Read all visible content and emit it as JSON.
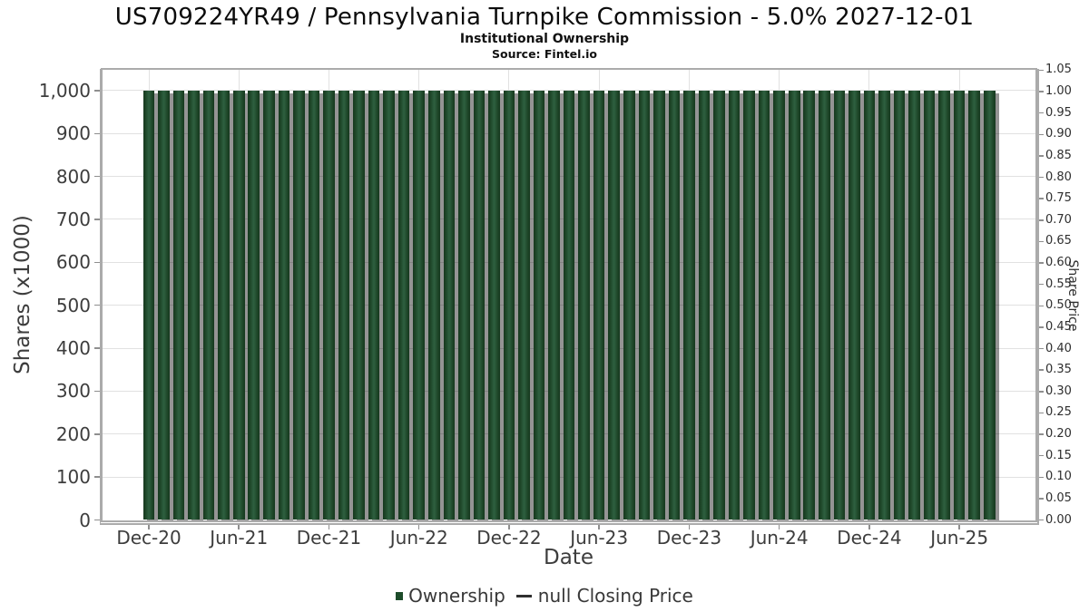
{
  "header": {
    "title": "US709224YR49 / Pennsylvania Turnpike Commission - 5.0% 2027-12-01",
    "subtitle": "Institutional Ownership",
    "source": "Source: Fintel.io"
  },
  "chart_data": {
    "type": "bar",
    "title": "US709224YR49 / Pennsylvania Turnpike Commission - 5.0% 2027-12-01",
    "subtitle": "Institutional Ownership",
    "source": "Source: Fintel.io",
    "xlabel": "Date",
    "ylabel_left": "Shares (x1000)",
    "ylabel_right": "Share Price",
    "categories": [
      "Dec-20",
      "Jan-21",
      "Feb-21",
      "Mar-21",
      "Apr-21",
      "May-21",
      "Jun-21",
      "Jul-21",
      "Aug-21",
      "Sep-21",
      "Oct-21",
      "Nov-21",
      "Dec-21",
      "Jan-22",
      "Feb-22",
      "Mar-22",
      "Apr-22",
      "May-22",
      "Jun-22",
      "Jul-22",
      "Aug-22",
      "Sep-22",
      "Oct-22",
      "Nov-22",
      "Dec-22",
      "Jan-23",
      "Feb-23",
      "Mar-23",
      "Apr-23",
      "May-23",
      "Jun-23",
      "Jul-23",
      "Aug-23",
      "Sep-23",
      "Oct-23",
      "Nov-23",
      "Dec-23",
      "Jan-24",
      "Feb-24",
      "Mar-24",
      "Apr-24",
      "May-24",
      "Jun-24",
      "Jul-24",
      "Aug-24",
      "Sep-24",
      "Oct-24",
      "Nov-24",
      "Dec-24",
      "Jan-25",
      "Feb-25",
      "Mar-25",
      "Apr-25",
      "May-25",
      "Jun-25",
      "Jul-25",
      "Aug-25"
    ],
    "series": [
      {
        "name": "Ownership",
        "type": "bar",
        "axis": "left",
        "color": "#1d4c2a",
        "values": [
          1000,
          1000,
          1000,
          1000,
          1000,
          1000,
          1000,
          1000,
          1000,
          1000,
          1000,
          1000,
          1000,
          1000,
          1000,
          1000,
          1000,
          1000,
          1000,
          1000,
          1000,
          1000,
          1000,
          1000,
          1000,
          1000,
          1000,
          1000,
          1000,
          1000,
          1000,
          1000,
          1000,
          1000,
          1000,
          1000,
          1000,
          1000,
          1000,
          1000,
          1000,
          1000,
          1000,
          1000,
          1000,
          1000,
          1000,
          1000,
          1000,
          1000,
          1000,
          1000,
          1000,
          1000,
          1000,
          1000,
          1000
        ]
      },
      {
        "name": "null Closing Price",
        "type": "line",
        "axis": "right",
        "color": "#2f2f2f",
        "values": null
      }
    ],
    "x_tick_labels": [
      "Dec-20",
      "Jun-21",
      "Dec-21",
      "Jun-22",
      "Dec-22",
      "Jun-23",
      "Dec-23",
      "Jun-24",
      "Dec-24",
      "Jun-25"
    ],
    "x_tick_every": 6,
    "left_tick_labels": [
      "0",
      "100",
      "200",
      "300",
      "400",
      "500",
      "600",
      "700",
      "800",
      "900",
      "1,000"
    ],
    "left_tick_step": 100,
    "right_tick_labels": [
      "0.00",
      "0.05",
      "0.10",
      "0.15",
      "0.20",
      "0.25",
      "0.30",
      "0.35",
      "0.40",
      "0.45",
      "0.50",
      "0.55",
      "0.60",
      "0.65",
      "0.70",
      "0.75",
      "0.80",
      "0.85",
      "0.90",
      "0.95",
      "1.00",
      "1.05"
    ],
    "right_tick_step": 0.05,
    "ylim_left": [
      0,
      1047.5
    ],
    "ylim_right": [
      0,
      1.05
    ],
    "grid": true,
    "legend_position": "bottom"
  },
  "legend": {
    "ownership_label": "Ownership",
    "price_label": "null Closing Price",
    "bar_color": "#1d4c2a",
    "line_color": "#2f2f2f"
  }
}
